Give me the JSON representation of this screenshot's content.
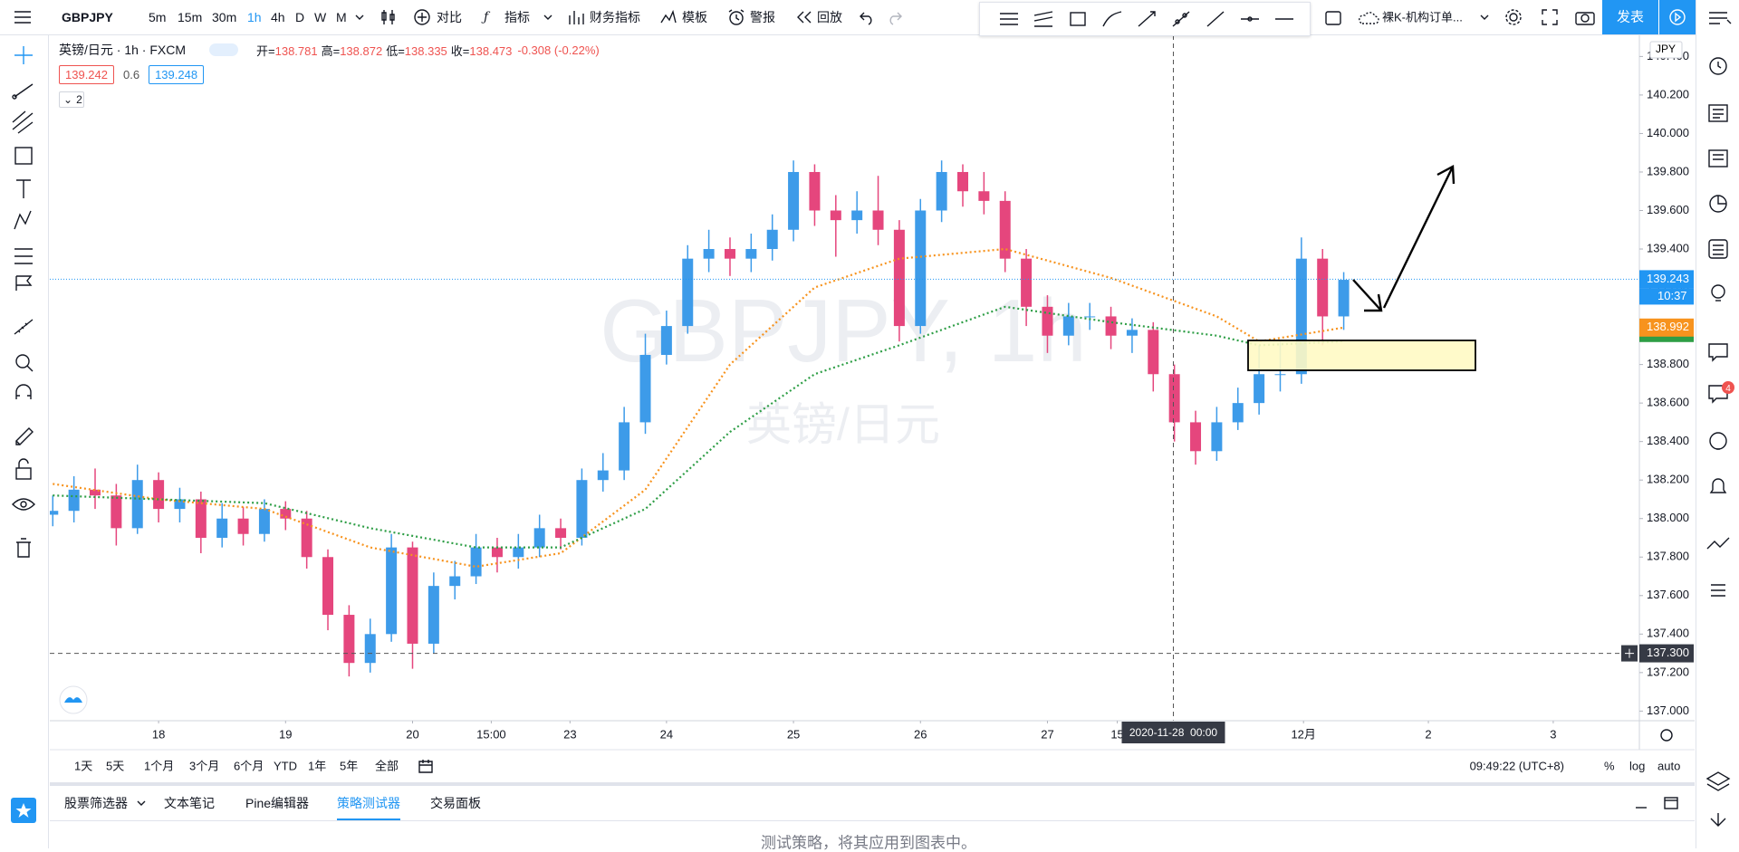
{
  "toolbar": {
    "symbol": "GBPJPY",
    "intervals": [
      "5m",
      "15m",
      "30m",
      "1h",
      "4h",
      "D",
      "W",
      "M"
    ],
    "active_interval": 3,
    "compare": "对比",
    "indicators": "指标",
    "financials": "财务指标",
    "templates": "模板",
    "alerts": "警报",
    "replay": "回放",
    "layout_name": "裸K-机构订单...",
    "publish": "发表"
  },
  "legend": {
    "title": "英镑/日元 · 1h · FXCM",
    "ohlc": [
      {
        "label": "开=",
        "value": "138.781"
      },
      {
        "label": "高=",
        "value": "138.872"
      },
      {
        "label": "低=",
        "value": "138.335"
      },
      {
        "label": "收=",
        "value": "138.473"
      }
    ],
    "change": "-0.308 (-0.22%)",
    "bid": "139.242",
    "spread": "0.6",
    "ask": "139.248",
    "collapsed_count": "2"
  },
  "watermark": {
    "symbol": "GBPJPY, 1h",
    "name": "英镑/日元"
  },
  "chart_data": {
    "type": "candlestick",
    "currency": "JPY",
    "up_color": "#3d9be9",
    "down_color": "#e5467d",
    "grid": false,
    "xlim": [
      -0.14,
      74.97
    ],
    "xticks": [
      {
        "value": 5,
        "label": "18"
      },
      {
        "value": 11,
        "label": "19"
      },
      {
        "value": 17,
        "label": "20"
      },
      {
        "value": 20.72,
        "label": "15:00"
      },
      {
        "value": 24.44,
        "label": "23"
      },
      {
        "value": 29,
        "label": "24"
      },
      {
        "value": 35,
        "label": "25"
      },
      {
        "value": 41,
        "label": "26"
      },
      {
        "value": 47,
        "label": "27"
      },
      {
        "value": 50.3,
        "label": "15"
      },
      {
        "value": 59.1,
        "label": "12月"
      },
      {
        "value": 65,
        "label": "2"
      },
      {
        "value": 70.9,
        "label": "3"
      }
    ],
    "ylim": [
      136.95,
      140.51
    ],
    "yticks": [
      {
        "value": 137,
        "label": "137.000"
      },
      {
        "value": 137.2,
        "label": "137.200"
      },
      {
        "value": 137.4,
        "label": "137.400"
      },
      {
        "value": 137.6,
        "label": "137.600"
      },
      {
        "value": 137.8,
        "label": "137.800"
      },
      {
        "value": 138,
        "label": "138.000"
      },
      {
        "value": 138.2,
        "label": "138.200"
      },
      {
        "value": 138.4,
        "label": "138.400"
      },
      {
        "value": 138.6,
        "label": "138.600"
      },
      {
        "value": 138.8,
        "label": "138.800"
      },
      {
        "value": 139,
        "label": "139.000"
      },
      {
        "value": 139.2,
        "label": "139.200"
      },
      {
        "value": 139.4,
        "label": "139.400"
      },
      {
        "value": 139.6,
        "label": "139.600"
      },
      {
        "value": 139.8,
        "label": "139.800"
      },
      {
        "value": 140,
        "label": "140.000"
      },
      {
        "value": 140.2,
        "label": "140.200"
      },
      {
        "value": 140.4,
        "label": "140.400"
      }
    ],
    "open": [
      138.02,
      138.04,
      138.15,
      138.12,
      137.95,
      138.2,
      138.05,
      138.1,
      137.9,
      138.0,
      137.92,
      138.05,
      138.0,
      137.8,
      137.5,
      137.25,
      137.4,
      137.85,
      137.35,
      137.65,
      137.7,
      137.85,
      137.8,
      137.85,
      137.95,
      137.9,
      138.2,
      138.25,
      138.5,
      138.85,
      139.0,
      139.35,
      139.4,
      139.35,
      139.4,
      139.5,
      139.8,
      139.6,
      139.55,
      139.6,
      139.5,
      139.0,
      139.6,
      139.8,
      139.7,
      139.65,
      139.35,
      139.1,
      138.95,
      139.05,
      139.05,
      138.95,
      138.98,
      138.75,
      138.5,
      138.35,
      138.5,
      138.6,
      138.75,
      138.75,
      139.35,
      139.05
    ],
    "high": [
      138.12,
      138.22,
      138.26,
      138.18,
      138.28,
      138.24,
      138.16,
      138.14,
      138.08,
      138.06,
      138.1,
      138.09,
      138.04,
      137.84,
      137.55,
      137.48,
      137.92,
      137.88,
      137.72,
      137.78,
      137.92,
      137.9,
      137.92,
      138.02,
      138.0,
      138.26,
      138.34,
      138.58,
      138.96,
      139.08,
      139.42,
      139.5,
      139.46,
      139.48,
      139.58,
      139.86,
      139.84,
      139.68,
      139.7,
      139.78,
      139.55,
      139.66,
      139.86,
      139.84,
      139.8,
      139.7,
      139.4,
      139.16,
      139.12,
      139.12,
      139.1,
      139.04,
      139.02,
      138.8,
      138.56,
      138.58,
      138.68,
      138.9,
      138.92,
      139.46,
      139.4,
      139.28
    ],
    "low": [
      137.96,
      137.98,
      138.05,
      137.86,
      137.92,
      137.98,
      137.98,
      137.82,
      137.85,
      137.86,
      137.88,
      137.94,
      137.74,
      137.42,
      137.18,
      137.2,
      137.36,
      137.22,
      137.3,
      137.58,
      137.66,
      137.72,
      137.74,
      137.8,
      137.84,
      137.86,
      138.14,
      138.2,
      138.44,
      138.8,
      138.96,
      139.28,
      139.26,
      139.28,
      139.34,
      139.44,
      139.52,
      139.36,
      139.48,
      139.42,
      138.92,
      138.96,
      139.54,
      139.62,
      139.58,
      139.28,
      139.0,
      138.86,
      138.9,
      138.98,
      138.88,
      138.86,
      138.66,
      138.4,
      138.28,
      138.3,
      138.46,
      138.54,
      138.66,
      138.7,
      138.9,
      138.98
    ],
    "close": [
      138.04,
      138.15,
      138.12,
      137.95,
      138.2,
      138.05,
      138.1,
      137.9,
      138.0,
      137.92,
      138.05,
      138.0,
      137.8,
      137.5,
      137.25,
      137.4,
      137.85,
      137.35,
      137.65,
      137.7,
      137.85,
      137.8,
      137.85,
      137.95,
      137.9,
      138.2,
      138.25,
      138.5,
      138.85,
      139.0,
      139.35,
      139.4,
      139.35,
      139.4,
      139.5,
      139.8,
      139.6,
      139.55,
      139.6,
      139.5,
      139.0,
      139.6,
      139.8,
      139.7,
      139.65,
      139.35,
      139.1,
      138.95,
      139.05,
      139.05,
      138.95,
      138.98,
      138.75,
      138.5,
      138.35,
      138.5,
      138.6,
      138.75,
      138.75,
      139.35,
      139.05,
      139.24
    ],
    "series": [
      {
        "color": "#f7931e",
        "x": [
          0,
          5,
          10,
          15,
          20,
          24,
          28,
          32,
          36,
          40,
          45,
          50,
          55,
          57,
          61
        ],
        "values": [
          138.18,
          138.1,
          138.05,
          137.85,
          137.75,
          137.82,
          138.15,
          138.8,
          139.2,
          139.35,
          139.4,
          139.25,
          139.05,
          138.92,
          138.992
        ]
      },
      {
        "color": "#2e9e46",
        "x": [
          0,
          5,
          10,
          15,
          20,
          24,
          28,
          32,
          36,
          40,
          45,
          50,
          55,
          57,
          61
        ],
        "values": [
          138.12,
          138.1,
          138.08,
          137.95,
          137.85,
          137.85,
          138.05,
          138.45,
          138.75,
          138.9,
          139.1,
          139.02,
          138.95,
          138.9,
          138.92
        ]
      }
    ],
    "last_price": {
      "value": 139.243,
      "label": "139.243",
      "countdown": "10:37",
      "color": "#2196f3"
    },
    "ma_price": {
      "value": 138.992,
      "label": "138.992"
    },
    "crosshair": {
      "price": {
        "value": 137.3,
        "label": "137.300"
      },
      "x": 52.95,
      "time_label": "2020-11-28  00:00"
    }
  },
  "range_bar": {
    "ranges": [
      "1天",
      "5天",
      "1个月",
      "3个月",
      "6个月",
      "YTD",
      "1年",
      "5年",
      "全部"
    ],
    "clock": "09:49:22 (UTC+8)",
    "percent": "%",
    "log": "log",
    "auto": "auto"
  },
  "bottom_panel": {
    "tabs": [
      "股票筛选器",
      "文本笔记",
      "Pine编辑器",
      "策略测试器",
      "交易面板"
    ],
    "active_tab": 3,
    "message": "测试策略，将其应用到图表中。"
  },
  "sidebar": {
    "notifications": "4"
  }
}
